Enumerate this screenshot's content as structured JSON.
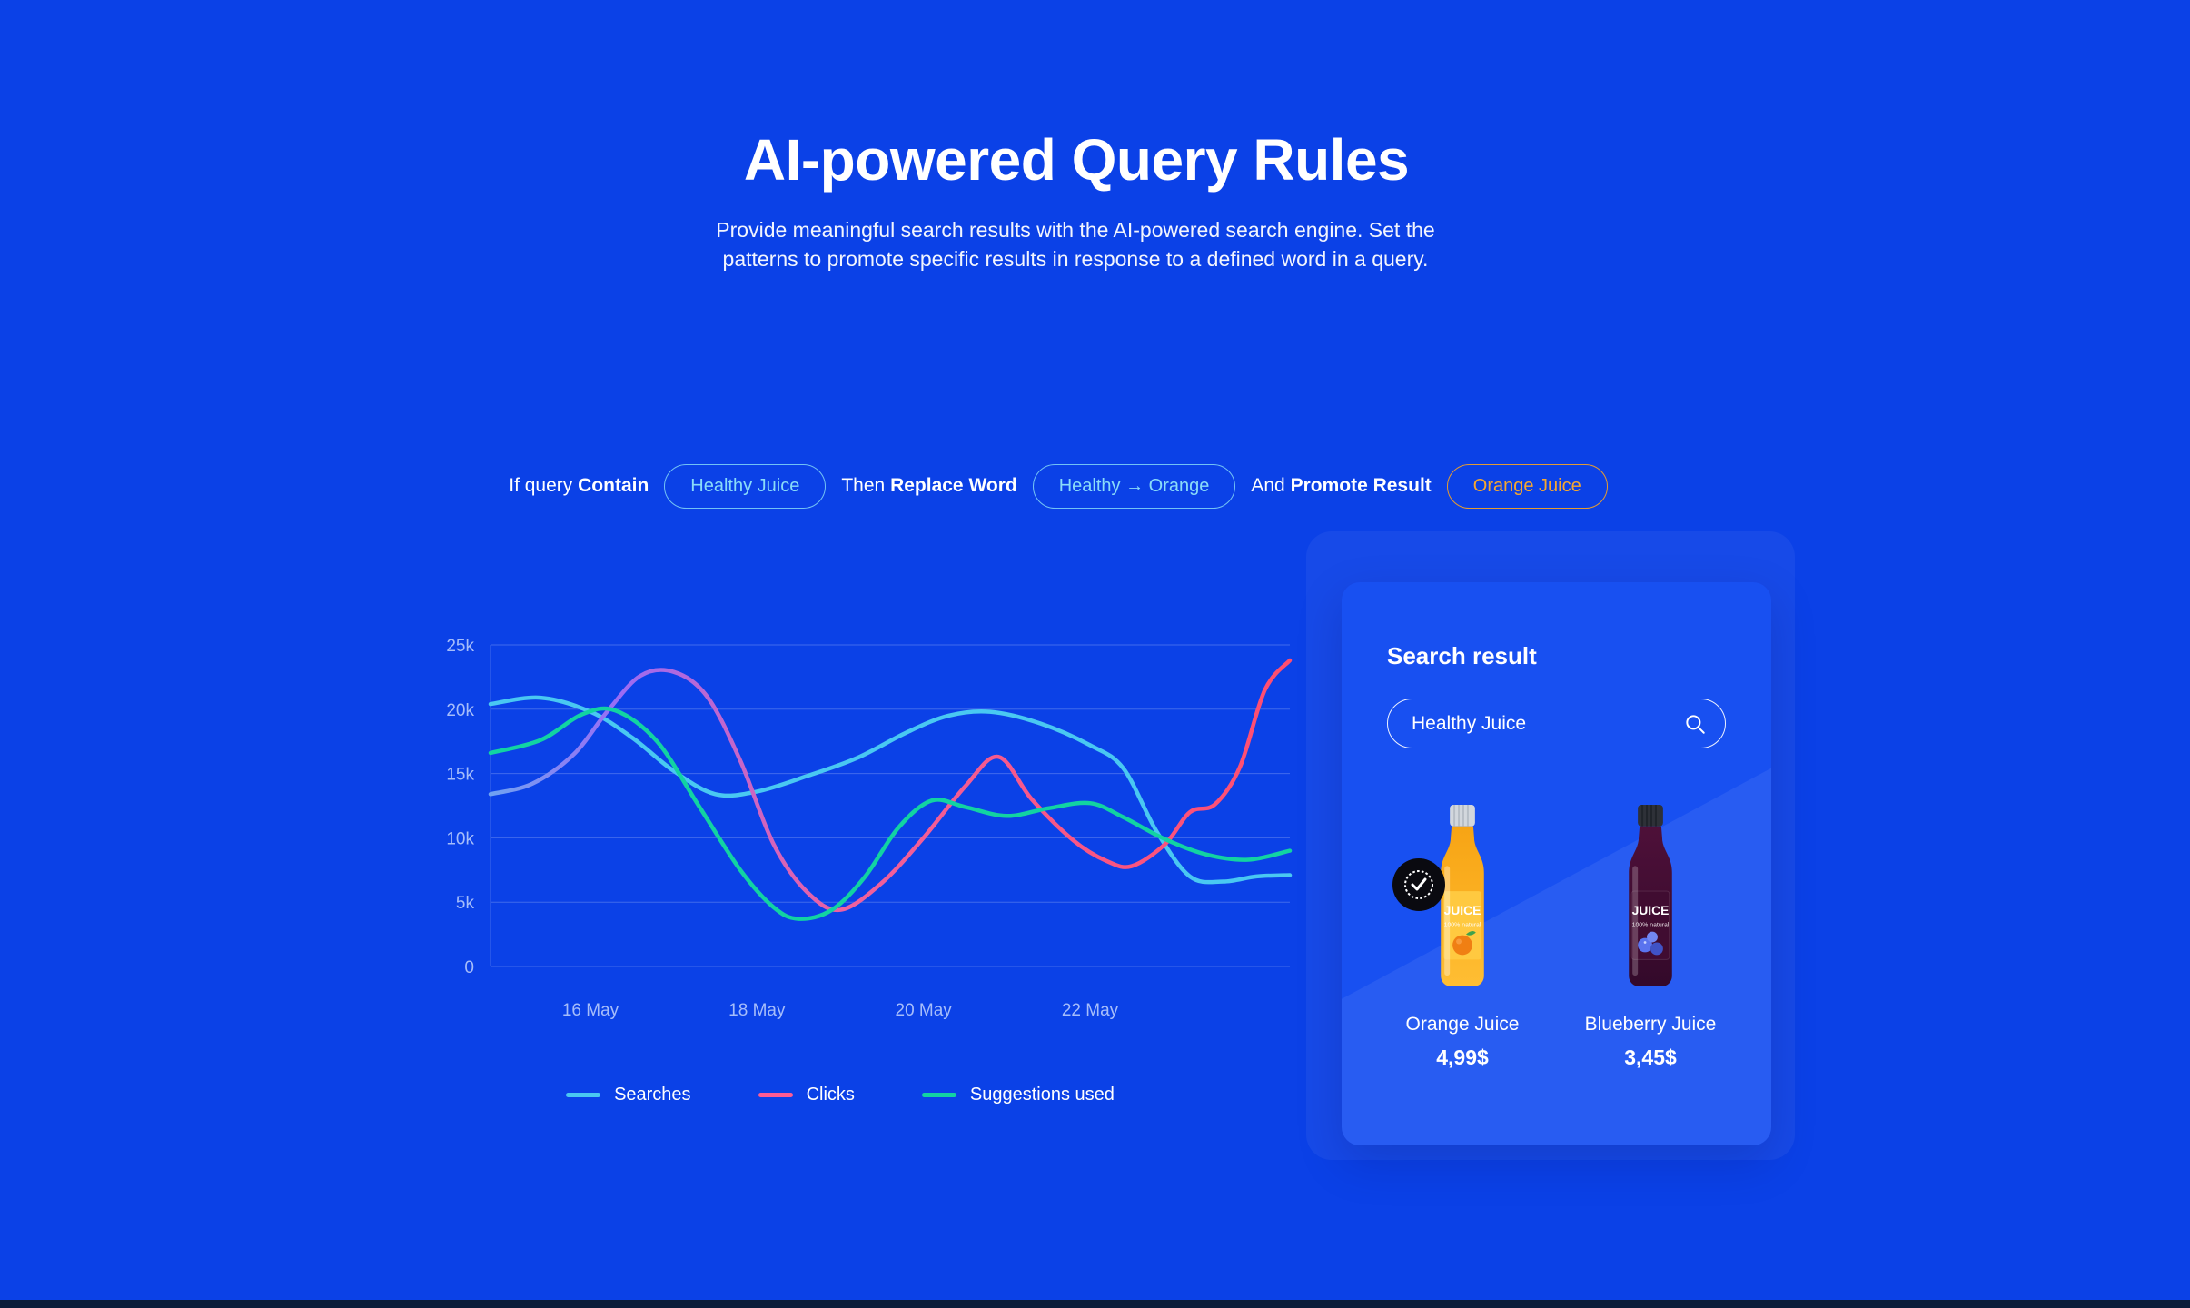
{
  "page": {
    "title": "AI-powered Query Rules",
    "subtitle": "Provide meaningful search results with the AI-powered search engine. Set the patterns to promote specific results in response to a defined word in a query."
  },
  "rule": {
    "if_prefix": "If query",
    "if_keyword": "Contain",
    "if_value": "Healthy Juice",
    "then_prefix": "Then",
    "then_keyword": "Replace Word",
    "then_value": "Healthy → Orange",
    "and_prefix": "And",
    "and_keyword": "Promote Result",
    "and_value": "Orange Juice"
  },
  "search_card": {
    "title": "Search result",
    "input_value": "Healthy Juice",
    "products": [
      {
        "name": "Orange Juice",
        "price": "4,99$",
        "badge": "promoted-check"
      },
      {
        "name": "Blueberry Juice",
        "price": "3,45$",
        "badge": null
      }
    ]
  },
  "colors": {
    "background": "#0B41E7",
    "card": "#1850F1",
    "pill_cyan": "#8ADCF9",
    "pill_orange": "#F7A72F",
    "searches_line": "#49C8F2",
    "clicks_line": "#FF5C93",
    "suggestions_line": "#12D3A2",
    "footer_bar": "#0A1D3A"
  },
  "chart_data": {
    "type": "line",
    "title": "",
    "xlabel": "",
    "ylabel": "",
    "values_in": "thousands",
    "x_domain": [
      14.8,
      24.4
    ],
    "ylim": [
      0,
      25
    ],
    "grid": "horizontal",
    "legend_position": "bottom",
    "x_tick_values": [
      16,
      18,
      20,
      22
    ],
    "x_tick_labels": [
      "16 May",
      "18 May",
      "20 May",
      "22 May"
    ],
    "y_tick_values": [
      0,
      5,
      10,
      15,
      20,
      25
    ],
    "y_tick_labels": [
      "0",
      "5k",
      "10k",
      "15k",
      "20k",
      "25k"
    ],
    "series": [
      {
        "name": "Searches",
        "color": "#49C8F2",
        "legend_color": "#49C8F2",
        "x": [
          14.8,
          15.4,
          16.0,
          16.5,
          17.0,
          17.5,
          18.0,
          18.6,
          19.2,
          19.8,
          20.3,
          20.8,
          21.4,
          22.0,
          22.4,
          22.8,
          23.2,
          23.6,
          24.0,
          24.4
        ],
        "y": [
          20.4,
          20.9,
          19.8,
          17.8,
          15.2,
          13.4,
          13.6,
          14.8,
          16.2,
          18.2,
          19.5,
          19.8,
          18.9,
          17.2,
          15.4,
          10.5,
          7.0,
          6.6,
          7.0,
          7.1
        ]
      },
      {
        "name": "Clicks",
        "color": "#FF5C93",
        "legend_color": "#FF5C93",
        "gradient": [
          {
            "offset": 0,
            "color": "#6FA3F2"
          },
          {
            "offset": 0.16,
            "color": "#9A6CF5"
          },
          {
            "offset": 0.45,
            "color": "#F0609E"
          },
          {
            "offset": 1,
            "color": "#FF4D6F"
          }
        ],
        "x": [
          14.8,
          15.3,
          15.8,
          16.2,
          16.6,
          17.0,
          17.4,
          17.8,
          18.2,
          18.6,
          19.0,
          19.5,
          20.0,
          20.5,
          20.9,
          21.3,
          21.8,
          22.2,
          22.5,
          22.9,
          23.2,
          23.5,
          23.8,
          24.1,
          24.4
        ],
        "y": [
          13.4,
          14.2,
          16.5,
          19.8,
          22.6,
          22.9,
          21.0,
          16.0,
          9.5,
          5.8,
          4.4,
          6.5,
          10.0,
          14.0,
          16.3,
          13.0,
          9.8,
          8.2,
          7.8,
          9.5,
          12.0,
          12.6,
          15.5,
          21.5,
          23.8
        ]
      },
      {
        "name": "Suggestions used",
        "color": "#12D3A2",
        "legend_color": "#12D3A2",
        "x": [
          14.8,
          15.4,
          15.9,
          16.3,
          16.8,
          17.3,
          17.8,
          18.2,
          18.5,
          18.9,
          19.3,
          19.7,
          20.1,
          20.5,
          21.0,
          21.5,
          22.0,
          22.4,
          22.9,
          23.4,
          23.9,
          24.4
        ],
        "y": [
          16.6,
          17.6,
          19.6,
          19.9,
          17.5,
          12.5,
          7.5,
          4.6,
          3.7,
          4.4,
          7.0,
          10.8,
          12.9,
          12.4,
          11.7,
          12.3,
          12.7,
          11.6,
          9.9,
          8.7,
          8.3,
          9.0
        ]
      }
    ]
  }
}
